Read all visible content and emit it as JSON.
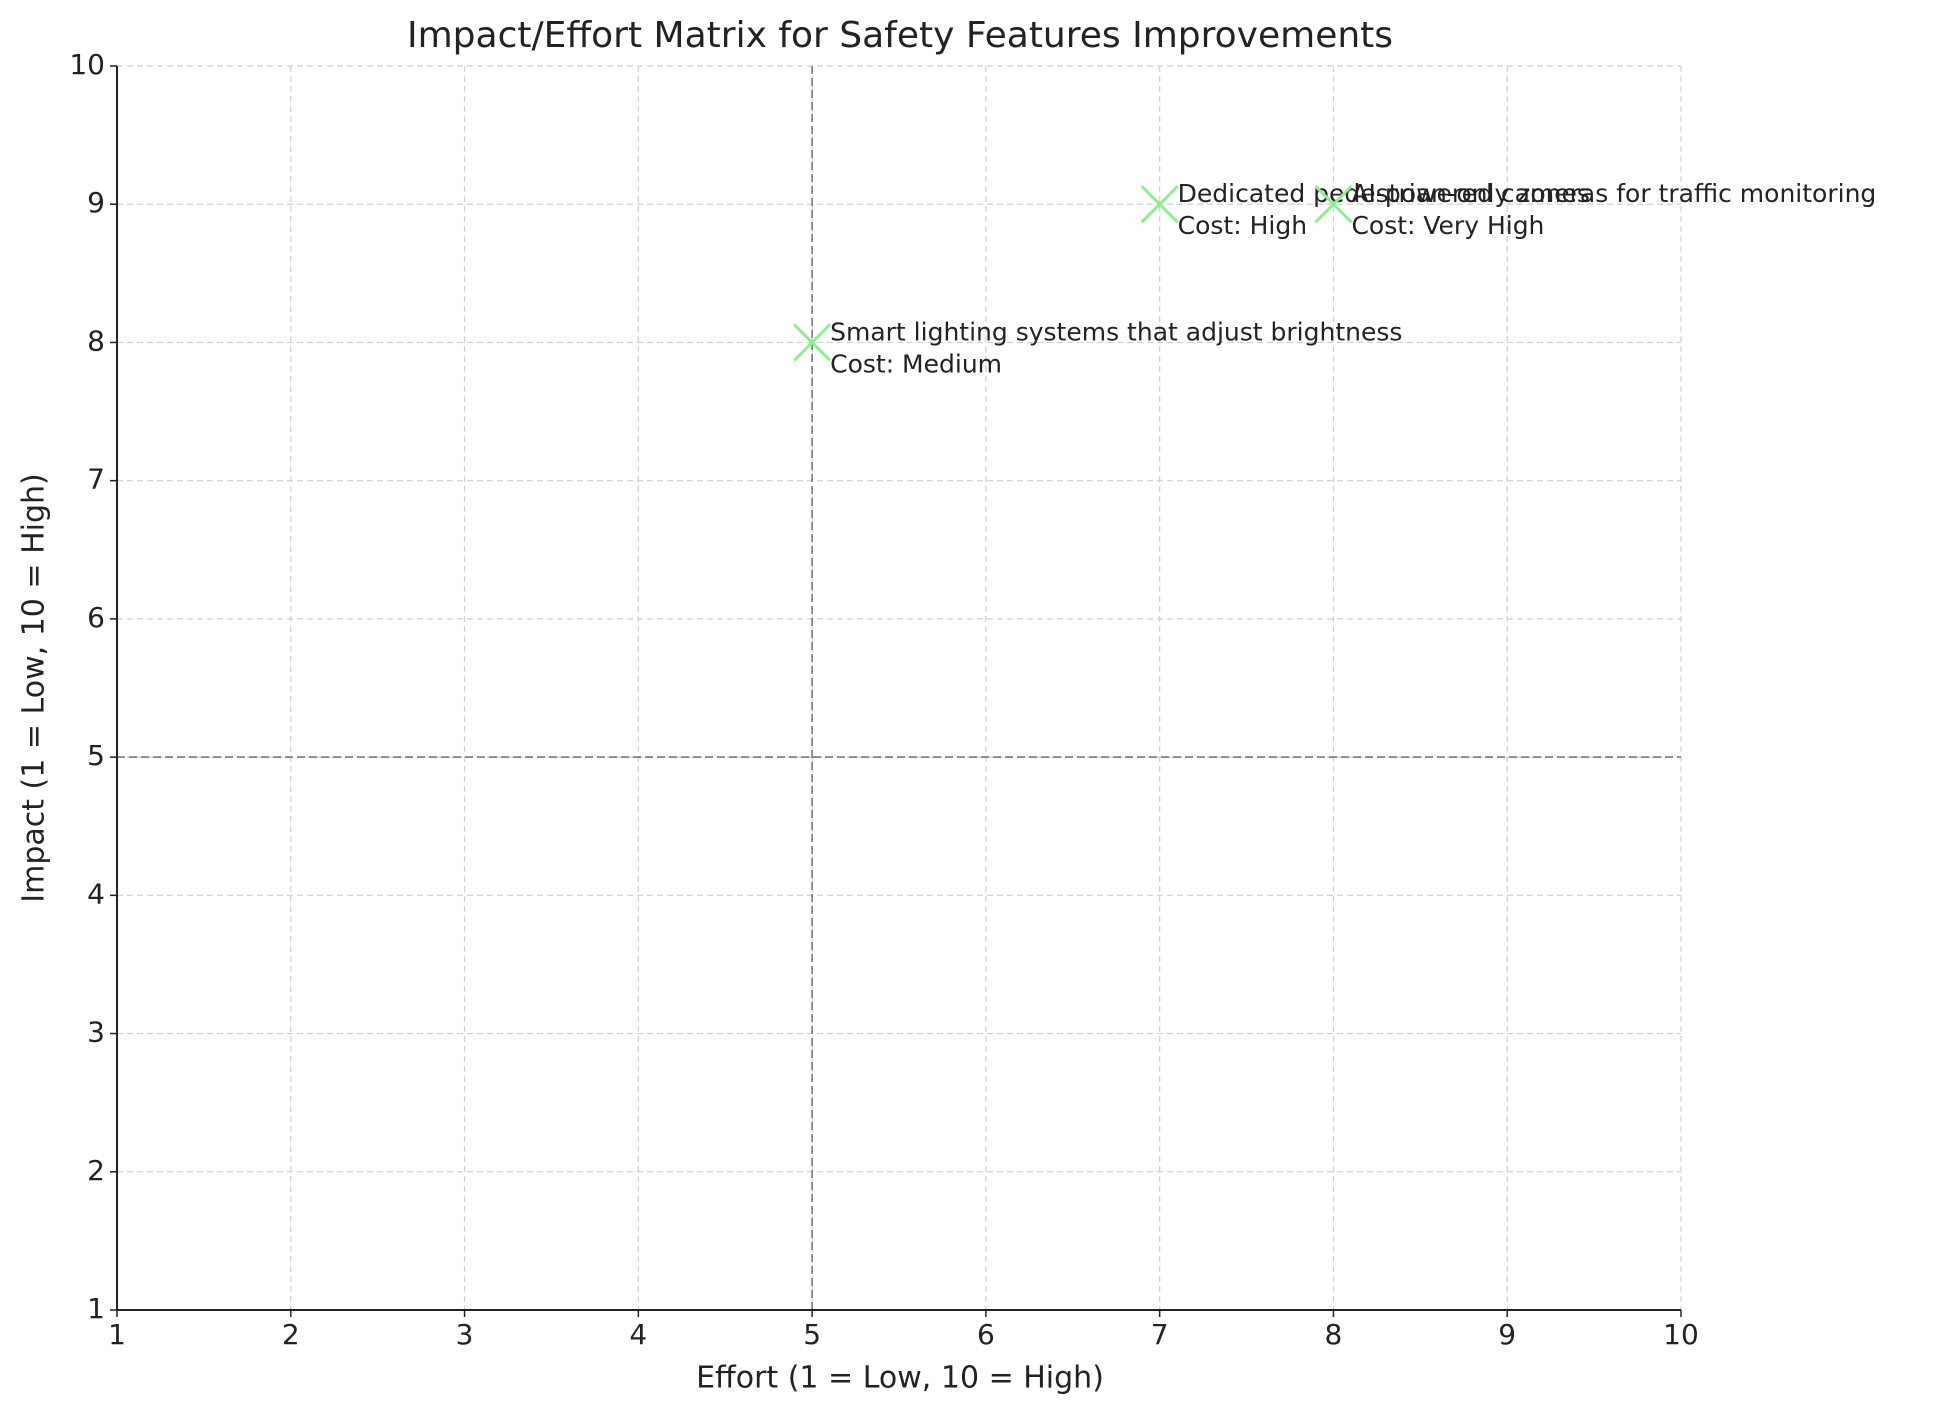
{
  "chart_data": {
    "type": "scatter",
    "title": "Impact/Effort Matrix for Safety Features Improvements",
    "x_label": "Effort (1 = Low, 10 = High)",
    "y_label": "Impact (1 = Low, 10 = High)",
    "xlim": [
      1,
      10
    ],
    "ylim": [
      1,
      10
    ],
    "xticks": [
      1,
      2,
      3,
      4,
      5,
      6,
      7,
      8,
      9,
      10
    ],
    "yticks": [
      1,
      2,
      3,
      4,
      5,
      6,
      7,
      8,
      9,
      10
    ],
    "grid": true,
    "quadrant_lines": {
      "x": 5,
      "y": 5
    },
    "series": [
      {
        "color": "#90ee90",
        "marker": "x",
        "x": [
          5,
          7,
          8
        ],
        "values": [
          8,
          9,
          9
        ],
        "labels": [
          "Smart lighting systems that adjust brightness",
          "Dedicated pedestrian-only zones",
          "AI-powered cameras for traffic monitoring"
        ],
        "costs": [
          "Cost: Medium",
          "Cost: High",
          "Cost: Very High"
        ]
      }
    ]
  }
}
